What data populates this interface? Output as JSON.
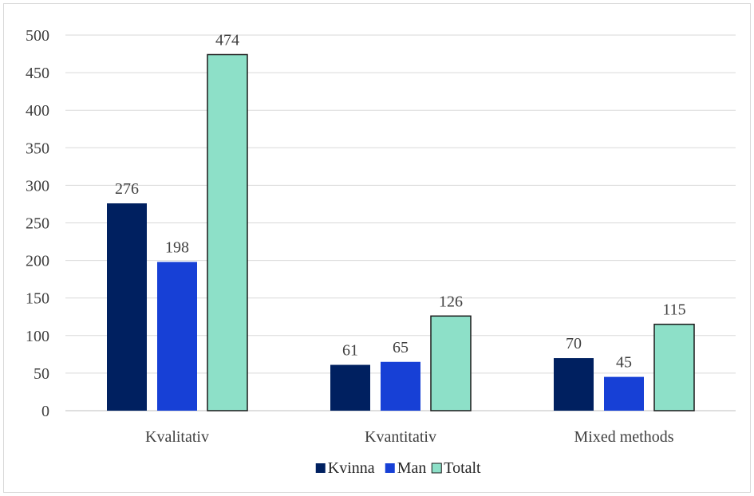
{
  "chart_data": {
    "type": "bar",
    "categories": [
      "Kvalitativ",
      "Kvantitativ",
      "Mixed methods"
    ],
    "series": [
      {
        "name": "Kvinna",
        "values": [
          276,
          61,
          70
        ],
        "color": "#002060"
      },
      {
        "name": "Man",
        "values": [
          198,
          65,
          45
        ],
        "color": "#1740d6"
      },
      {
        "name": "Totalt",
        "values": [
          474,
          126,
          115
        ],
        "color": "#8de0c8",
        "outline": "#1a1a1a"
      }
    ],
    "title": "",
    "xlabel": "",
    "ylabel": "",
    "ylim": [
      0,
      500
    ],
    "yticks": [
      0,
      50,
      100,
      150,
      200,
      250,
      300,
      350,
      400,
      450,
      500
    ],
    "grid": true,
    "legend": "bottom-center"
  }
}
